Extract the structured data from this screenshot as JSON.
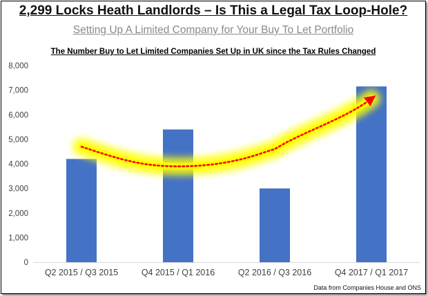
{
  "header": {
    "title": "2,299 Locks Heath Landlords – Is This a Legal Tax Loop-Hole?",
    "subtitle": "Setting Up A Limited Company for Your Buy To Let Portfolio"
  },
  "footnote": "Data from Companies House and ONS",
  "chart_data": {
    "type": "bar",
    "title": "The Number Buy to Let Limited Companies Set Up in UK since the Tax Rules Changed",
    "categories": [
      "Q2 2015 / Q3 2015",
      "Q4 2015 / Q1 2016",
      "Q2 2016 / Q3 2016",
      "Q4 2017 / Q1 2017"
    ],
    "values": [
      4200,
      5400,
      3000,
      7150
    ],
    "ylim": [
      0,
      8000
    ],
    "yticks": [
      0,
      1000,
      2000,
      3000,
      4000,
      5000,
      6000,
      7000,
      8000
    ],
    "ytick_labels": [
      "0",
      "1,000",
      "2,000",
      "3,000",
      "4,000",
      "5,000",
      "6,000",
      "7,000",
      "8,000"
    ],
    "xlabel": "",
    "ylabel": "",
    "grid": false,
    "legend": "none",
    "bar_color": "#4472C4",
    "annotation": {
      "type": "trend-arrow",
      "color": "#FF0000",
      "glow_color": "#FFFF00",
      "points": [
        {
          "category_index": 0,
          "value": 4700
        },
        {
          "category_index": 1,
          "value": 3900
        },
        {
          "category_index": 2,
          "value": 4600
        },
        {
          "category_index": 3,
          "value": 6650
        }
      ]
    }
  }
}
